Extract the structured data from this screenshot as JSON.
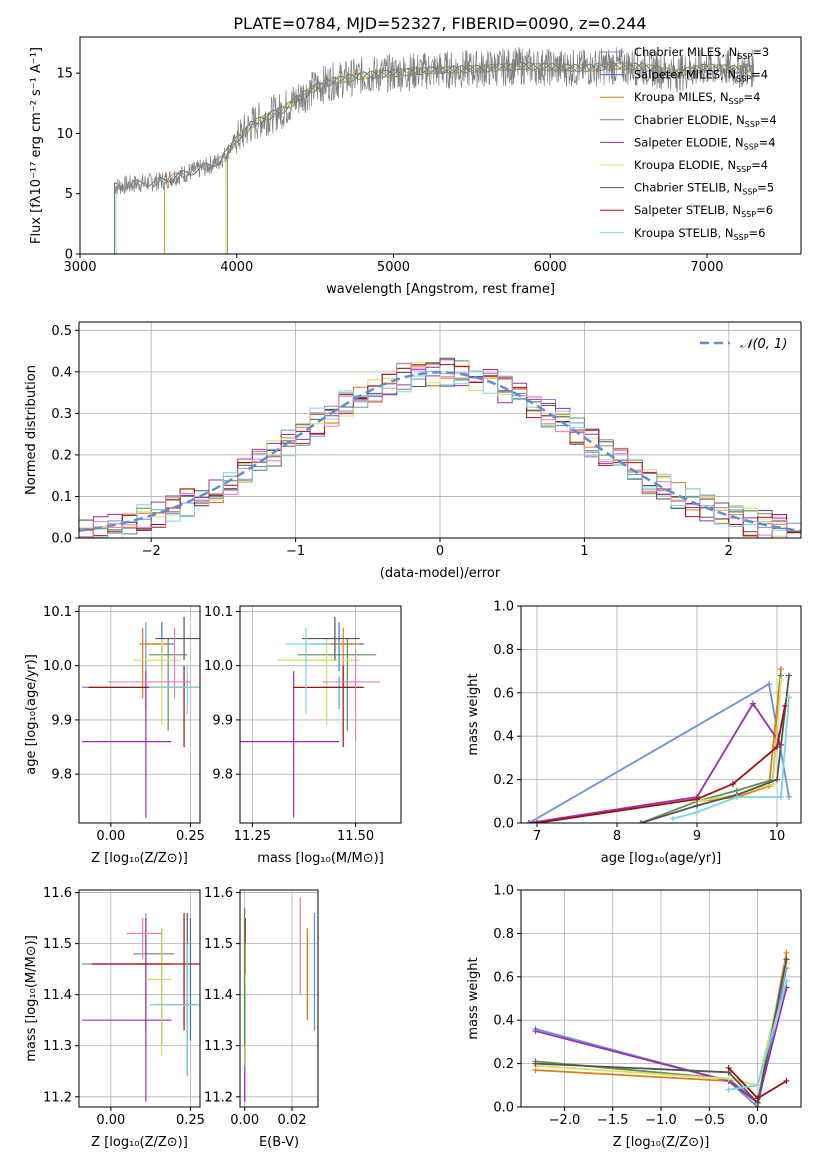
{
  "figure": {
    "title": "PLATE=0784, MJD=52327, FIBERID=0090, z=0.244"
  },
  "palette": {
    "Chabrier MILES": "#6a93dc",
    "Salpeter MILES": "#3b73c8",
    "Kroupa MILES": "#e07d18",
    "Chabrier ELODIE": "#5f8f5a",
    "Salpeter ELODIE": "#9c2fb0",
    "Kroupa ELODIE": "#d4e060",
    "Chabrier STELIB": "#555555",
    "Salpeter STELIB": "#a01010",
    "Kroupa STELIB": "#7dd3df",
    "pink": "#e87fb8",
    "grid": "#b0b0b0",
    "gauss": "#5b8fd6"
  },
  "chart_data": [
    {
      "id": "spectrum",
      "type": "line",
      "xlabel": "wavelength [Angstrom, rest frame]",
      "ylabel": "Flux [fλ10⁻¹⁷ erg cm⁻² s⁻¹ A⁻¹]",
      "xlim": [
        3000,
        7600
      ],
      "ylim": [
        0,
        18
      ],
      "xticks": [
        3000,
        4000,
        5000,
        6000,
        7000
      ],
      "yticks": [
        0,
        5,
        10,
        15
      ],
      "grid": false,
      "legend_position": "upper-right",
      "legend": [
        {
          "label": "Chabrier MILES, N",
          "sub": "SSP",
          "tail": "=3",
          "color_key": "Chabrier MILES"
        },
        {
          "label": "Salpeter MILES, N",
          "sub": "SSP",
          "tail": "=4",
          "color_key": "Salpeter MILES"
        },
        {
          "label": "Kroupa MILES, N",
          "sub": "SSP",
          "tail": "=4",
          "color_key": "Kroupa MILES"
        },
        {
          "label": "Chabrier ELODIE, N",
          "sub": "SSP",
          "tail": "=4",
          "color_key": "Chabrier ELODIE"
        },
        {
          "label": "Salpeter ELODIE, N",
          "sub": "SSP",
          "tail": "=4",
          "color_key": "Salpeter ELODIE"
        },
        {
          "label": "Kroupa ELODIE, N",
          "sub": "SSP",
          "tail": "=4",
          "color_key": "Kroupa ELODIE"
        },
        {
          "label": "Chabrier STELIB, N",
          "sub": "SSP",
          "tail": "=5",
          "color_key": "Chabrier STELIB"
        },
        {
          "label": "Salpeter STELIB, N",
          "sub": "SSP",
          "tail": "=6",
          "color_key": "Salpeter STELIB"
        },
        {
          "label": "Kroupa STELIB, N",
          "sub": "SSP",
          "tail": "=6",
          "color_key": "Kroupa STELIB"
        }
      ],
      "continuum": {
        "x": [
          3220,
          3400,
          3500,
          3600,
          3700,
          3800,
          3900,
          4000,
          4100,
          4200,
          4300,
          4400,
          4500,
          4600,
          4800,
          5000,
          5200,
          5400,
          5600,
          5800,
          6000,
          6200,
          6400,
          6600,
          6800,
          7000,
          7200,
          7300
        ],
        "y": [
          5.6,
          5.9,
          6.0,
          6.4,
          6.8,
          7.2,
          7.8,
          9.5,
          10.8,
          11.4,
          12.0,
          13.0,
          13.8,
          14.3,
          14.8,
          15.0,
          15.2,
          15.3,
          15.4,
          15.6,
          15.5,
          15.4,
          15.6,
          15.5,
          15.0,
          15.5,
          15.3,
          15.4
        ]
      },
      "model_starts": [
        {
          "color_key": "Chabrier STELIB",
          "x": 3220
        },
        {
          "color_key": "Kroupa STELIB",
          "x": 3230
        },
        {
          "color_key": "Kroupa MILES",
          "x": 3540
        },
        {
          "color_key": "Kroupa ELODIE",
          "x": 3930
        },
        {
          "color_key": "Chabrier ELODIE",
          "x": 3940
        }
      ]
    },
    {
      "id": "residuals",
      "type": "step",
      "xlabel": "(data-model)/error",
      "ylabel": "Normed distribution",
      "xlim": [
        -2.5,
        2.5
      ],
      "ylim": [
        0,
        0.52
      ],
      "xticks": [
        -2,
        -1,
        0,
        1,
        2
      ],
      "yticks": [
        0.0,
        0.1,
        0.2,
        0.3,
        0.4,
        0.5
      ],
      "grid": true,
      "legend_position": "upper-right",
      "legend_label": "𝒩(0, 1)",
      "gauss": {
        "mu": 0,
        "sigma": 1
      }
    },
    {
      "id": "age-vs-Z",
      "type": "errorbar",
      "xlabel": "Z [log₁₀(Z/Z⊙)]",
      "ylabel": "age  [log₁₀(age/yr)]",
      "xlim": [
        -0.1,
        0.28
      ],
      "ylim": [
        9.71,
        10.11
      ],
      "xticks": [
        0.0,
        0.25
      ],
      "yticks": [
        9.8,
        9.9,
        10.0,
        10.1
      ],
      "grid": true,
      "points": [
        {
          "c": "Chabrier MILES",
          "x": 0.11,
          "xerr": [
            0.2,
            0.02
          ],
          "y": 9.96,
          "yerr": [
            0.04,
            0.12
          ]
        },
        {
          "c": "Salpeter MILES",
          "x": 0.16,
          "xerr": [
            0.05,
            0.04
          ],
          "y": 10.04,
          "yerr": [
            0.05,
            0.04
          ]
        },
        {
          "c": "Kroupa MILES",
          "x": 0.1,
          "xerr": [
            0.01,
            0.08
          ],
          "y": 10.04,
          "yerr": [
            0.1,
            0.03
          ]
        },
        {
          "c": "Chabrier ELODIE",
          "x": 0.18,
          "xerr": [
            0.06,
            0.06
          ],
          "y": 10.02,
          "yerr": [
            0.14,
            0.03
          ]
        },
        {
          "c": "Salpeter ELODIE",
          "x": 0.11,
          "xerr": [
            0.2,
            0.08
          ],
          "y": 9.86,
          "yerr": [
            0.14,
            0.13
          ]
        },
        {
          "c": "Kroupa ELODIE",
          "x": 0.16,
          "xerr": [
            0.09,
            0.06
          ],
          "y": 10.01,
          "yerr": [
            0.12,
            0.04
          ]
        },
        {
          "c": "Chabrier STELIB",
          "x": 0.23,
          "xerr": [
            0.09,
            0.05
          ],
          "y": 10.05,
          "yerr": [
            0.04,
            0.04
          ]
        },
        {
          "c": "Salpeter STELIB",
          "x": 0.23,
          "xerr": [
            0.3,
            0.05
          ],
          "y": 9.96,
          "yerr": [
            0.11,
            0.04
          ]
        },
        {
          "c": "Kroupa STELIB",
          "x": 0.24,
          "xerr": [
            0.12,
            0.04
          ],
          "y": 9.96,
          "yerr": [
            0.05,
            0.04
          ]
        },
        {
          "c": "pink",
          "x": 0.2,
          "xerr": [
            0.21,
            0.05
          ],
          "y": 9.97,
          "yerr": [
            0.03,
            0.1
          ]
        }
      ]
    },
    {
      "id": "age-vs-mass",
      "type": "errorbar",
      "xlabel": "mass [log₁₀(M/M⊙)]",
      "ylabel": "",
      "xlim": [
        11.22,
        11.61
      ],
      "ylim": [
        9.71,
        10.11
      ],
      "xticks": [
        11.25,
        11.5
      ],
      "yticks": [
        9.8,
        9.9,
        10.0,
        10.1
      ],
      "grid": true,
      "points": [
        {
          "c": "Chabrier MILES",
          "x": 11.46,
          "xerr": [
            0.04,
            0.05
          ],
          "y": 9.96,
          "yerr": [
            0.04,
            0.02
          ]
        },
        {
          "c": "Salpeter MILES",
          "x": 11.46,
          "xerr": [
            0.07,
            0.06
          ],
          "y": 10.04,
          "yerr": [
            0.05,
            0.04
          ]
        },
        {
          "c": "Kroupa MILES",
          "x": 11.47,
          "xerr": [
            0.05,
            0.04
          ],
          "y": 10.04,
          "yerr": [
            0.08,
            0.03
          ]
        },
        {
          "c": "Chabrier ELODIE",
          "x": 11.48,
          "xerr": [
            0.12,
            0.07
          ],
          "y": 10.02,
          "yerr": [
            0.14,
            0.03
          ]
        },
        {
          "c": "Salpeter ELODIE",
          "x": 11.35,
          "xerr": [
            0.15,
            0.11
          ],
          "y": 9.86,
          "yerr": [
            0.14,
            0.13
          ]
        },
        {
          "c": "Kroupa ELODIE",
          "x": 11.43,
          "xerr": [
            0.12,
            0.08
          ],
          "y": 10.01,
          "yerr": [
            0.12,
            0.04
          ]
        },
        {
          "c": "Chabrier STELIB",
          "x": 11.45,
          "xerr": [
            0.08,
            0.06
          ],
          "y": 10.05,
          "yerr": [
            0.04,
            0.04
          ]
        },
        {
          "c": "Salpeter STELIB",
          "x": 11.47,
          "xerr": [
            0.12,
            0.05
          ],
          "y": 9.96,
          "yerr": [
            0.11,
            0.04
          ]
        },
        {
          "c": "Kroupa STELIB",
          "x": 11.38,
          "xerr": [
            0.05,
            0.06
          ],
          "y": 10.04,
          "yerr": [
            0.13,
            0.03
          ]
        },
        {
          "c": "pink",
          "x": 11.5,
          "xerr": [
            0.08,
            0.06
          ],
          "y": 9.97,
          "yerr": [
            0.11,
            0.06
          ]
        }
      ]
    },
    {
      "id": "weight-vs-age",
      "type": "line",
      "xlabel": "age  [log₁₀(age/yr)]",
      "ylabel": "mass weight",
      "xlim": [
        6.8,
        10.3
      ],
      "ylim": [
        0,
        1
      ],
      "xticks": [
        7,
        8,
        9,
        10
      ],
      "yticks": [
        0.0,
        0.2,
        0.4,
        0.6,
        0.8,
        1.0
      ],
      "grid": true,
      "series": [
        {
          "c": "Chabrier MILES",
          "x": [
            6.9,
            9.9,
            10.15
          ],
          "y": [
            0.0,
            0.64,
            0.12
          ]
        },
        {
          "c": "Kroupa MILES",
          "x": [
            9.0,
            9.5,
            9.9,
            10.05
          ],
          "y": [
            0.1,
            0.12,
            0.17,
            0.71
          ]
        },
        {
          "c": "Chabrier ELODIE",
          "x": [
            8.3,
            9.0,
            9.5,
            9.95,
            10.05
          ],
          "y": [
            0.0,
            0.1,
            0.15,
            0.2,
            0.68
          ]
        },
        {
          "c": "Salpeter ELODIE",
          "x": [
            6.9,
            9.0,
            9.7,
            10.05
          ],
          "y": [
            0.0,
            0.12,
            0.55,
            0.36
          ]
        },
        {
          "c": "Kroupa ELODIE",
          "x": [
            9.0,
            9.5,
            9.95,
            10.05
          ],
          "y": [
            0.1,
            0.13,
            0.18,
            0.66
          ]
        },
        {
          "c": "Chabrier STELIB",
          "x": [
            8.3,
            9.0,
            9.5,
            10.0,
            10.15
          ],
          "y": [
            0.0,
            0.08,
            0.13,
            0.2,
            0.68
          ]
        },
        {
          "c": "Salpeter STELIB",
          "x": [
            7.0,
            9.0,
            9.45,
            10.0,
            10.1
          ],
          "y": [
            0.0,
            0.11,
            0.18,
            0.35,
            0.54
          ]
        },
        {
          "c": "Kroupa STELIB",
          "x": [
            8.7,
            9.0,
            9.5,
            10.05,
            10.15
          ],
          "y": [
            0.02,
            0.05,
            0.12,
            0.12,
            0.58
          ]
        }
      ]
    },
    {
      "id": "mass-vs-Z",
      "type": "errorbar",
      "xlabel": "Z [log₁₀(Z/Z⊙)]",
      "ylabel": "mass [log₁₀(M/M⊙)]",
      "xlim": [
        -0.1,
        0.28
      ],
      "ylim": [
        11.18,
        11.605
      ],
      "xticks": [
        0.0,
        0.25
      ],
      "yticks": [
        11.2,
        11.3,
        11.4,
        11.5,
        11.6
      ],
      "grid": true,
      "points": [
        {
          "c": "Chabrier MILES",
          "x": 0.11,
          "xerr": [
            0.2,
            0.02
          ],
          "y": 11.46,
          "yerr": [
            0.13,
            0.1
          ]
        },
        {
          "c": "Salpeter MILES",
          "x": 0.25,
          "xerr": [
            0.03,
            0.02
          ],
          "y": 11.38,
          "yerr": [
            0.07,
            0.17
          ]
        },
        {
          "c": "Kroupa MILES",
          "x": 0.16,
          "xerr": [
            0.08,
            0.03
          ],
          "y": 11.46,
          "yerr": [
            0.15,
            0.07
          ]
        },
        {
          "c": "Chabrier ELODIE",
          "x": 0.16,
          "xerr": [
            0.09,
            0.04
          ],
          "y": 11.48,
          "yerr": [
            0.18,
            0.05
          ]
        },
        {
          "c": "Salpeter ELODIE",
          "x": 0.11,
          "xerr": [
            0.2,
            0.08
          ],
          "y": 11.35,
          "yerr": [
            0.16,
            0.2
          ]
        },
        {
          "c": "Kroupa ELODIE",
          "x": 0.16,
          "xerr": [
            0.05,
            0.03
          ],
          "y": 11.43,
          "yerr": [
            0.15,
            0.1
          ]
        },
        {
          "c": "Chabrier STELIB",
          "x": 0.24,
          "xerr": [
            0.1,
            0.03
          ],
          "y": 11.38,
          "yerr": [
            0.14,
            0.18
          ]
        },
        {
          "c": "Salpeter STELIB",
          "x": 0.23,
          "xerr": [
            0.29,
            0.05
          ],
          "y": 11.46,
          "yerr": [
            0.13,
            0.1
          ]
        },
        {
          "c": "Kroupa STELIB",
          "x": 0.24,
          "xerr": [
            0.12,
            0.04
          ],
          "y": 11.38,
          "yerr": [
            0.14,
            0.12
          ]
        },
        {
          "c": "pink",
          "x": 0.1,
          "xerr": [
            0.05,
            0.06
          ],
          "y": 11.52,
          "yerr": [
            0.05,
            0.03
          ]
        }
      ]
    },
    {
      "id": "mass-vs-EBV",
      "type": "errorbar",
      "xlabel": "E(B-V)",
      "ylabel": "",
      "xlim": [
        -0.002,
        0.031
      ],
      "ylim": [
        11.18,
        11.605
      ],
      "xticks": [
        0.0,
        0.02
      ],
      "yticks": [
        11.2,
        11.3,
        11.4,
        11.5,
        11.6
      ],
      "grid": true,
      "vbars": [
        {
          "c": "Chabrier MILES",
          "x": 0.0295,
          "y1": 11.33,
          "y2": 11.56
        },
        {
          "c": "Kroupa MILES",
          "x": 0.0265,
          "y1": 11.35,
          "y2": 11.53
        },
        {
          "c": "pink",
          "x": 0.0235,
          "y1": 11.4,
          "y2": 11.59
        },
        {
          "c": "Salpeter STELIB",
          "x": 0.0002,
          "y1": 11.44,
          "y2": 11.55
        },
        {
          "c": "Salpeter ELODIE",
          "x": 0.0,
          "y1": 11.19,
          "y2": 11.3
        },
        {
          "c": "Kroupa STELIB",
          "x": 0.0003,
          "y1": 11.25,
          "y2": 11.42
        },
        {
          "c": "Kroupa ELODIE",
          "x": 0.0001,
          "y1": 11.26,
          "y2": 11.5
        },
        {
          "c": "Chabrier ELODIE",
          "x": -0.0001,
          "y1": 11.3,
          "y2": 11.57
        }
      ]
    },
    {
      "id": "weight-vs-Z",
      "type": "line",
      "xlabel": "Z [log₁₀(Z/Z⊙)]",
      "ylabel": "mass weight",
      "xlim": [
        -2.45,
        0.45
      ],
      "ylim": [
        0,
        1
      ],
      "xticks": [
        -2.0,
        -1.5,
        -1.0,
        -0.5,
        0.0
      ],
      "yticks": [
        0.0,
        0.2,
        0.4,
        0.6,
        0.8,
        1.0
      ],
      "grid": true,
      "series": [
        {
          "c": "Chabrier MILES",
          "x": [
            -2.3,
            -0.3,
            0.0,
            0.3
          ],
          "y": [
            0.36,
            0.12,
            0.0,
            0.64
          ]
        },
        {
          "c": "Kroupa MILES",
          "x": [
            -2.3,
            -0.3,
            0.0,
            0.3
          ],
          "y": [
            0.17,
            0.12,
            0.02,
            0.71
          ]
        },
        {
          "c": "Chabrier ELODIE",
          "x": [
            -2.3,
            -0.3,
            0.0,
            0.3
          ],
          "y": [
            0.21,
            0.13,
            0.02,
            0.68
          ]
        },
        {
          "c": "Salpeter ELODIE",
          "x": [
            -2.3,
            -0.3,
            0.0,
            0.3
          ],
          "y": [
            0.35,
            0.12,
            0.02,
            0.55
          ]
        },
        {
          "c": "Kroupa ELODIE",
          "x": [
            -2.3,
            -0.3,
            0.0,
            0.3
          ],
          "y": [
            0.19,
            0.13,
            0.1,
            0.66
          ]
        },
        {
          "c": "Chabrier STELIB",
          "x": [
            -2.3,
            -0.3,
            0.0,
            0.3
          ],
          "y": [
            0.2,
            0.16,
            0.02,
            0.68
          ]
        },
        {
          "c": "Salpeter STELIB",
          "x": [
            -0.3,
            0.0,
            0.3
          ],
          "y": [
            0.18,
            0.04,
            0.12
          ]
        },
        {
          "c": "Kroupa STELIB",
          "x": [
            -0.3,
            0.0,
            0.3
          ],
          "y": [
            0.08,
            0.1,
            0.58
          ]
        }
      ]
    }
  ]
}
